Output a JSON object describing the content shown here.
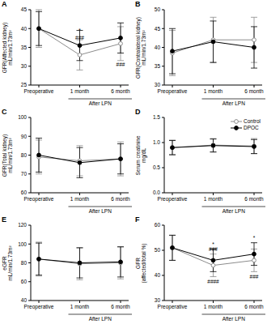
{
  "chart_data": [
    {
      "type": "line",
      "panel": "A",
      "y_label": [
        "GFR(Affected kidney)",
        "mL/min/1.73m²"
      ],
      "categories": [
        "Preoperative",
        "1 month",
        "6 month"
      ],
      "group_labels": [
        {
          "text": "After LPN",
          "categories": [
            "1 month",
            "6 month"
          ]
        }
      ],
      "series": [
        {
          "name": "Control",
          "color": "#8c8c8c",
          "marker": "open_circle",
          "values": [
            40,
            33,
            36
          ],
          "errors": [
            5,
            4,
            4.5
          ]
        },
        {
          "name": "DPOC",
          "color": "#000000",
          "marker": "circle",
          "values": [
            40,
            35.5,
            37.5
          ],
          "errors": [
            4.5,
            4,
            4
          ]
        }
      ],
      "ylim": [
        25,
        45
      ],
      "yticks": [
        25,
        30,
        35,
        40,
        45
      ],
      "grid": false,
      "annotations": [
        {
          "category": "1 month",
          "y": 39.5,
          "text": "*"
        },
        {
          "category": "1 month",
          "y": 37.5,
          "text": "###"
        },
        {
          "category": "6 month",
          "y": 30.5,
          "text": "###"
        }
      ]
    },
    {
      "type": "line",
      "panel": "B",
      "y_label": [
        "GFR(Contralateral kidney)",
        "mL/min/1.73m²"
      ],
      "categories": [
        "Preoperative",
        "1 month",
        "6 month"
      ],
      "group_labels": [
        {
          "text": "After LPN",
          "categories": [
            "1 month",
            "6 month"
          ]
        }
      ],
      "series": [
        {
          "name": "Control",
          "color": "#8c8c8c",
          "marker": "open_circle",
          "values": [
            38.5,
            42,
            42
          ],
          "errors": [
            6,
            6,
            6
          ]
        },
        {
          "name": "DPOC",
          "color": "#000000",
          "marker": "circle",
          "values": [
            39,
            41.5,
            40
          ],
          "errors": [
            6,
            5.5,
            5.5
          ]
        }
      ],
      "ylim": [
        30,
        50
      ],
      "yticks": [
        30,
        35,
        40,
        45,
        50
      ],
      "grid": false,
      "annotations": []
    },
    {
      "type": "line",
      "panel": "C",
      "y_label": [
        "GFR(Total kidney)",
        "mL/min/1.73m²"
      ],
      "categories": [
        "Preoperative",
        "1 month",
        "6 month"
      ],
      "group_labels": [
        {
          "text": "After LPN",
          "categories": [
            "1 month",
            "6 month"
          ]
        }
      ],
      "series": [
        {
          "name": "Control",
          "color": "#8c8c8c",
          "marker": "open_circle",
          "values": [
            79,
            77,
            78
          ],
          "errors": [
            9,
            8,
            9
          ]
        },
        {
          "name": "DPOC",
          "color": "#000000",
          "marker": "circle",
          "values": [
            80,
            76,
            78
          ],
          "errors": [
            9,
            8,
            8
          ]
        }
      ],
      "ylim": [
        60,
        100
      ],
      "yticks": [
        60,
        70,
        80,
        90,
        100
      ],
      "grid": false,
      "annotations": []
    },
    {
      "type": "line",
      "panel": "D",
      "y_label": [
        "Serum creatinine",
        "mg/dL"
      ],
      "categories": [
        "Preoperative",
        "1 month",
        "6 month"
      ],
      "group_labels": [
        {
          "text": "After LPN",
          "categories": [
            "1 month",
            "6 month"
          ]
        }
      ],
      "series": [
        {
          "name": "Control",
          "color": "#8c8c8c",
          "marker": "open_circle",
          "values": [
            0.9,
            0.95,
            0.93
          ],
          "errors": [
            0.15,
            0.13,
            0.15
          ]
        },
        {
          "name": "DPOC",
          "color": "#000000",
          "marker": "circle",
          "values": [
            0.9,
            0.94,
            0.92
          ],
          "errors": [
            0.14,
            0.13,
            0.14
          ]
        }
      ],
      "ylim": [
        0,
        1.5
      ],
      "yticks": [
        {
          "value": 0,
          "label": "0.0"
        },
        {
          "value": 0.5,
          "label": "0.5"
        },
        {
          "value": 1,
          "label": "1.0"
        },
        {
          "value": 1.5,
          "label": "1.5"
        }
      ],
      "grid": false,
      "legend": "upper right",
      "annotations": []
    },
    {
      "type": "line",
      "panel": "E",
      "y_label": [
        "eGFR",
        "mL/min/1.73m²"
      ],
      "categories": [
        "Preoperative",
        "1 month",
        "6 month"
      ],
      "group_labels": [
        {
          "text": "After LPN",
          "categories": [
            "1 month",
            "6 month"
          ]
        }
      ],
      "series": [
        {
          "name": "Control",
          "color": "#8c8c8c",
          "marker": "open_circle",
          "values": [
            84,
            79,
            80
          ],
          "errors": [
            18,
            17,
            17
          ]
        },
        {
          "name": "DPOC",
          "color": "#000000",
          "marker": "circle",
          "values": [
            84,
            80,
            81
          ],
          "errors": [
            17,
            16,
            16
          ]
        }
      ],
      "ylim": [
        40,
        120
      ],
      "yticks": [
        40,
        60,
        80,
        100,
        120
      ],
      "grid": false,
      "annotations": []
    },
    {
      "type": "line",
      "panel": "F",
      "y_label": [
        "GFR",
        "(affected/total %)"
      ],
      "categories": [
        "Preoperative",
        "1 month",
        "6 month"
      ],
      "group_labels": [
        {
          "text": "After LPN",
          "categories": [
            "1 month",
            "6 month"
          ]
        }
      ],
      "series": [
        {
          "name": "Control",
          "color": "#8c8c8c",
          "marker": "open_circle",
          "values": [
            51,
            44,
            46
          ],
          "errors": [
            5,
            4.5,
            4.5
          ]
        },
        {
          "name": "DPOC",
          "color": "#000000",
          "marker": "circle",
          "values": [
            51,
            46,
            48.5
          ],
          "errors": [
            5,
            4.5,
            4.5
          ]
        }
      ],
      "ylim": [
        30,
        60
      ],
      "yticks": [
        30,
        40,
        50,
        60
      ],
      "grid": false,
      "annotations": [
        {
          "category": "1 month",
          "y": 52.5,
          "text": "*"
        },
        {
          "category": "1 month",
          "y": 50.5,
          "text": "###"
        },
        {
          "category": "1 month",
          "y": 37.5,
          "text": "####"
        },
        {
          "category": "6 month",
          "y": 55,
          "text": "*"
        },
        {
          "category": "6 month",
          "y": 39.5,
          "text": "###"
        }
      ]
    }
  ]
}
